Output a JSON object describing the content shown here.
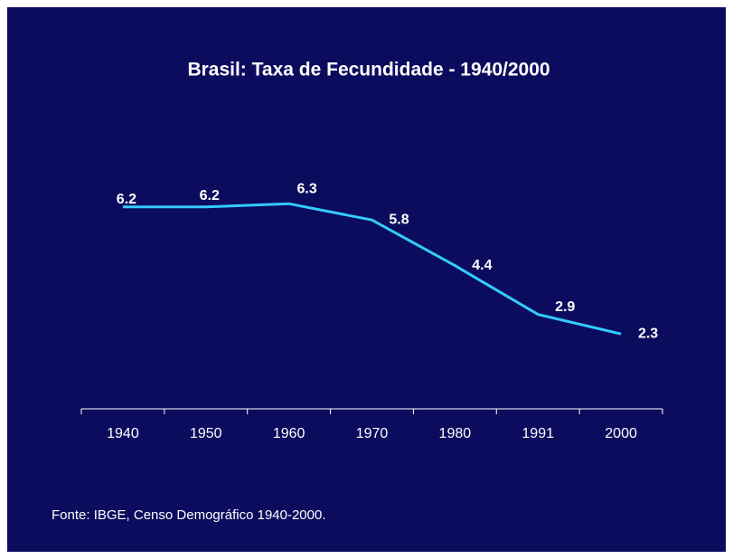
{
  "chart_data": {
    "type": "line",
    "title": "Brasil: Taxa de Fecundidade - 1940/2000",
    "source": "Fonte: IBGE, Censo Demográfico 1940-2000.",
    "categories": [
      "1940",
      "1950",
      "1960",
      "1970",
      "1980",
      "1991",
      "2000"
    ],
    "series": [
      {
        "name": "Taxa de Fecundidade",
        "color": "#33ccff",
        "values": [
          6.2,
          6.2,
          6.3,
          5.8,
          4.4,
          2.9,
          2.3
        ]
      }
    ],
    "ylim": [
      0,
      7
    ],
    "grid": false
  }
}
